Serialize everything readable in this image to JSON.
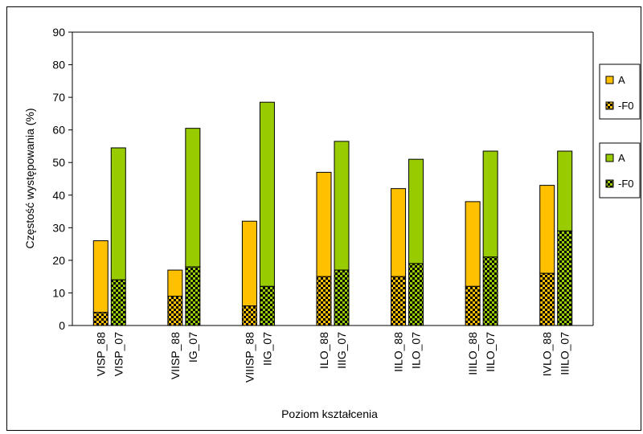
{
  "chart_data": {
    "type": "bar",
    "stacked": true,
    "xlabel": "Poziom kształcenia",
    "ylabel": "Częstość występowania (%)",
    "ylim": [
      0,
      90
    ],
    "yticks": [
      0,
      10,
      20,
      30,
      40,
      50,
      60,
      70,
      80,
      90
    ],
    "grid": false,
    "legend_position": "right",
    "groups": [
      {
        "labels": [
          "VISP_88",
          "VISP_07"
        ],
        "f0": [
          4,
          14
        ],
        "total": [
          26,
          54.5
        ]
      },
      {
        "labels": [
          "VIISP_88",
          "IG_07"
        ],
        "f0": [
          9,
          18
        ],
        "total": [
          17,
          60.5
        ]
      },
      {
        "labels": [
          "VIIISP_88",
          "IIG_07"
        ],
        "f0": [
          6,
          12
        ],
        "total": [
          32,
          68.5
        ]
      },
      {
        "labels": [
          "ILO_88",
          "IIIG_07"
        ],
        "f0": [
          15,
          17
        ],
        "total": [
          47,
          56.5
        ]
      },
      {
        "labels": [
          "IILO_88",
          "ILO_07"
        ],
        "f0": [
          15,
          19
        ],
        "total": [
          42,
          51
        ]
      },
      {
        "labels": [
          "IIILO_88",
          "IILO_07"
        ],
        "f0": [
          12,
          21
        ],
        "total": [
          38,
          53.5
        ]
      },
      {
        "labels": [
          "IVLO_88",
          "IIILO_07"
        ],
        "f0": [
          16,
          29
        ],
        "total": [
          43,
          53.5
        ]
      }
    ],
    "series": [
      {
        "name": "A",
        "year_set": "88",
        "color": "#ffc000",
        "pattern": "solid"
      },
      {
        "name": "-F0",
        "year_set": "88",
        "color": "#ffc000",
        "pattern": "checker"
      },
      {
        "name": "A",
        "year_set": "07",
        "color": "#99cc00",
        "pattern": "solid"
      },
      {
        "name": "-F0",
        "year_set": "07",
        "color": "#99cc00",
        "pattern": "checker"
      }
    ]
  }
}
